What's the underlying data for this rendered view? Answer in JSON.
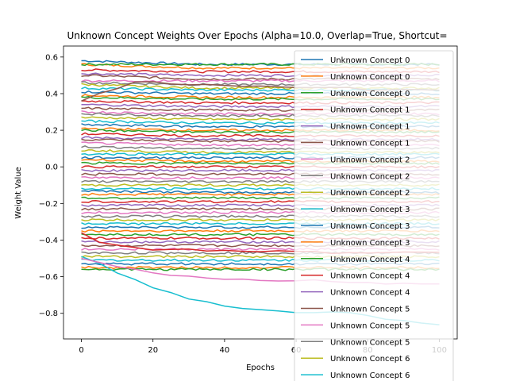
{
  "chart_data": {
    "type": "line",
    "title": "Unknown Concept Weights Over Epochs (Alpha=10.0, Overlap=True, Shortcut=",
    "xlabel": "Epochs",
    "ylabel": "Weight Value",
    "xlim": [
      -5,
      105
    ],
    "ylim": [
      -0.94,
      0.66
    ],
    "xticks": [
      0,
      20,
      40,
      60,
      80,
      100
    ],
    "yticks": [
      -0.8,
      -0.6,
      -0.4,
      -0.2,
      0.0,
      0.2,
      0.4,
      0.6
    ],
    "xtick_labels": [
      "0",
      "20",
      "40",
      "60",
      "80",
      "100"
    ],
    "ytick_labels": [
      "−0.8",
      "−0.6",
      "−0.4",
      "−0.2",
      "0.0",
      "0.2",
      "0.4",
      "0.6"
    ],
    "grid": false,
    "legend_position": "right, overlapping plot",
    "epochs": 100,
    "legend": [
      {
        "label": "Unknown Concept 0",
        "color": "#1f77b4"
      },
      {
        "label": "Unknown Concept 0",
        "color": "#ff7f0e"
      },
      {
        "label": "Unknown Concept 0",
        "color": "#2ca02c"
      },
      {
        "label": "Unknown Concept 1",
        "color": "#d62728"
      },
      {
        "label": "Unknown Concept 1",
        "color": "#9467bd"
      },
      {
        "label": "Unknown Concept 1",
        "color": "#8c564b"
      },
      {
        "label": "Unknown Concept 2",
        "color": "#e377c2"
      },
      {
        "label": "Unknown Concept 2",
        "color": "#7f7f7f"
      },
      {
        "label": "Unknown Concept 2",
        "color": "#bcbd22"
      },
      {
        "label": "Unknown Concept 3",
        "color": "#17becf"
      },
      {
        "label": "Unknown Concept 3",
        "color": "#1f77b4"
      },
      {
        "label": "Unknown Concept 3",
        "color": "#ff7f0e"
      },
      {
        "label": "Unknown Concept 4",
        "color": "#2ca02c"
      },
      {
        "label": "Unknown Concept 4",
        "color": "#d62728"
      },
      {
        "label": "Unknown Concept 4",
        "color": "#9467bd"
      },
      {
        "label": "Unknown Concept 5",
        "color": "#8c564b"
      },
      {
        "label": "Unknown Concept 5",
        "color": "#e377c2"
      },
      {
        "label": "Unknown Concept 5",
        "color": "#7f7f7f"
      },
      {
        "label": "Unknown Concept 6",
        "color": "#bcbd22"
      },
      {
        "label": "Unknown Concept 6",
        "color": "#17becf"
      }
    ],
    "color_cycle": [
      "#1f77b4",
      "#ff7f0e",
      "#2ca02c",
      "#d62728",
      "#9467bd",
      "#8c564b",
      "#e377c2",
      "#7f7f7f",
      "#bcbd22",
      "#17becf"
    ],
    "series_start_values": [
      0.58,
      0.56,
      0.56,
      0.53,
      0.51,
      0.5,
      0.47,
      0.46,
      0.45,
      0.43,
      0.41,
      0.39,
      0.38,
      0.36,
      0.34,
      0.32,
      0.3,
      0.29,
      0.27,
      0.25,
      0.23,
      0.21,
      0.2,
      0.18,
      0.16,
      0.15,
      0.13,
      0.11,
      0.09,
      0.07,
      0.05,
      0.04,
      0.02,
      0.0,
      -0.02,
      -0.04,
      -0.06,
      -0.08,
      -0.1,
      -0.12,
      -0.13,
      -0.15,
      -0.17,
      -0.19,
      -0.21,
      -0.23,
      -0.25,
      -0.27,
      -0.29,
      -0.31,
      -0.33,
      -0.35,
      -0.37,
      -0.39,
      -0.41,
      -0.43,
      -0.45,
      -0.47,
      -0.49,
      -0.51,
      -0.53,
      -0.55,
      -0.56
    ],
    "series_end_values": [
      0.56,
      0.54,
      0.56,
      0.52,
      0.5,
      0.48,
      0.47,
      0.45,
      0.43,
      0.42,
      0.4,
      0.38,
      0.37,
      0.35,
      0.33,
      0.31,
      0.29,
      0.28,
      0.26,
      0.24,
      0.22,
      0.2,
      0.19,
      0.17,
      0.15,
      0.14,
      0.12,
      0.1,
      0.08,
      0.07,
      0.05,
      0.03,
      0.02,
      0.0,
      -0.02,
      -0.04,
      -0.06,
      -0.08,
      -0.1,
      -0.12,
      -0.14,
      -0.15,
      -0.17,
      -0.19,
      -0.21,
      -0.23,
      -0.25,
      -0.27,
      -0.29,
      -0.31,
      -0.33,
      -0.35,
      -0.37,
      -0.39,
      -0.41,
      -0.43,
      -0.45,
      -0.47,
      -0.49,
      -0.51,
      -0.53,
      -0.55,
      -0.56
    ],
    "highlight_series": [
      {
        "color": "#17becf",
        "x": [
          0,
          5,
          10,
          15,
          20,
          25,
          30,
          35,
          40,
          45,
          50,
          55,
          60,
          65,
          70,
          75,
          80,
          85,
          90,
          95,
          100
        ],
        "y": [
          -0.49,
          -0.53,
          -0.58,
          -0.62,
          -0.66,
          -0.69,
          -0.72,
          -0.74,
          -0.76,
          -0.77,
          -0.78,
          -0.79,
          -0.8,
          -0.8,
          -0.79,
          -0.8,
          -0.81,
          -0.83,
          -0.84,
          -0.85,
          -0.86
        ]
      },
      {
        "color": "#e377c2",
        "x": [
          0,
          5,
          10,
          15,
          20,
          25,
          30,
          35,
          40,
          45,
          50,
          55,
          60,
          65,
          70,
          75,
          80,
          85,
          90,
          95,
          100
        ],
        "y": [
          -0.5,
          -0.52,
          -0.54,
          -0.56,
          -0.58,
          -0.59,
          -0.6,
          -0.61,
          -0.61,
          -0.61,
          -0.62,
          -0.62,
          -0.62,
          -0.62,
          -0.63,
          -0.63,
          -0.63,
          -0.64,
          -0.64,
          -0.64,
          -0.64
        ]
      },
      {
        "color": "#d62728",
        "x": [
          0,
          5,
          10,
          15,
          20,
          25,
          30,
          35,
          40,
          45,
          50,
          55,
          60,
          65,
          70,
          75,
          80,
          85,
          90,
          95,
          100
        ],
        "y": [
          -0.36,
          -0.41,
          -0.43,
          -0.44,
          -0.45,
          -0.45,
          -0.45,
          -0.46,
          -0.46,
          -0.46,
          -0.46,
          -0.46,
          -0.46,
          -0.46,
          -0.47,
          -0.47,
          -0.47,
          -0.47,
          -0.47,
          -0.47,
          -0.47
        ]
      },
      {
        "color": "#8c564b",
        "x": [
          0,
          5,
          10,
          15,
          20,
          25,
          30,
          35,
          40,
          45,
          50,
          55,
          60,
          65,
          70,
          75,
          80,
          85,
          90,
          95,
          100
        ],
        "y": [
          0.36,
          0.4,
          0.43,
          0.46,
          0.46,
          0.45,
          0.45,
          0.45,
          0.44,
          0.44,
          0.44,
          0.44,
          0.43,
          0.43,
          0.43,
          0.43,
          0.42,
          0.42,
          0.42,
          0.42,
          0.42
        ]
      }
    ]
  }
}
